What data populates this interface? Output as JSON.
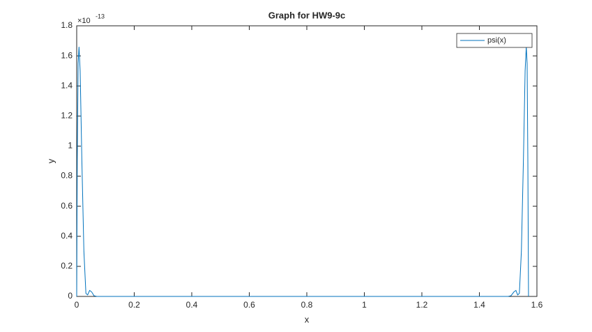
{
  "chart_data": {
    "type": "line",
    "title": "Graph for HW9-9c",
    "xlabel": "x",
    "ylabel": "y",
    "y_scale_label": {
      "base": "×10",
      "exponent": "-13"
    },
    "x": [
      0,
      0.002,
      0.005,
      0.008,
      0.012,
      0.018,
      0.025,
      0.032,
      0.038,
      0.045,
      0.052,
      0.06,
      0.07,
      1.5,
      1.51,
      1.52,
      1.527,
      1.533,
      1.539,
      1.546,
      1.553,
      1.559,
      1.563,
      1.566,
      1.5685,
      1.5708
    ],
    "series": [
      {
        "name": "psi(x)",
        "color": "#0072bd",
        "values": [
          0,
          0.9,
          1.55,
          1.66,
          1.5,
          0.9,
          0.3,
          0.02,
          0.01,
          0.04,
          0.03,
          0.005,
          0,
          0,
          0.005,
          0.03,
          0.04,
          0.01,
          0.02,
          0.3,
          0.9,
          1.5,
          1.66,
          1.55,
          0.9,
          0
        ]
      }
    ],
    "xlim": [
      0,
      1.6
    ],
    "ylim": [
      0,
      1.8
    ],
    "xticks": [
      0,
      0.2,
      0.4,
      0.6,
      0.8,
      1,
      1.2,
      1.4,
      1.6
    ],
    "yticks": [
      0,
      0.2,
      0.4,
      0.6,
      0.8,
      1,
      1.2,
      1.4,
      1.6,
      1.8
    ],
    "grid": false,
    "legend": "northeast"
  }
}
